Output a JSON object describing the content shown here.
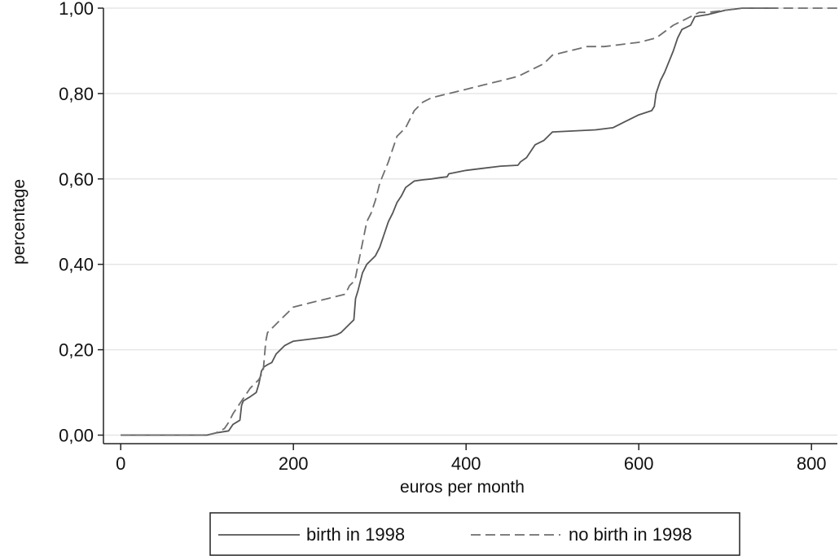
{
  "chart_data": {
    "type": "line",
    "title": "",
    "xlabel": "euros per month",
    "ylabel": "percentage",
    "xlim": [
      -20,
      830
    ],
    "ylim": [
      -0.02,
      1.0
    ],
    "xticks": [
      0,
      200,
      400,
      600,
      800
    ],
    "xtick_labels": [
      "0",
      "200",
      "400",
      "600",
      "800"
    ],
    "yticks": [
      0.0,
      0.2,
      0.4,
      0.6,
      0.8,
      1.0
    ],
    "ytick_labels": [
      "0,00",
      "0,20",
      "0,40",
      "0,60",
      "0,80",
      "1,00"
    ],
    "grid": "horizontal",
    "legend_position": "bottom",
    "series": [
      {
        "name": "birth in 1998",
        "color": "#555555",
        "dash": "solid",
        "x": [
          0,
          100,
          110,
          125,
          130,
          138,
          140,
          142,
          150,
          157,
          160,
          163,
          166,
          170,
          175,
          180,
          185,
          190,
          195,
          200,
          220,
          240,
          250,
          255,
          260,
          265,
          270,
          272,
          275,
          280,
          285,
          290,
          295,
          300,
          305,
          310,
          315,
          320,
          325,
          330,
          340,
          350,
          360,
          370,
          378,
          380,
          400,
          420,
          440,
          460,
          463,
          470,
          480,
          490,
          500,
          550,
          570,
          580,
          600,
          615,
          618,
          620,
          625,
          630,
          640,
          645,
          650,
          660,
          665,
          680,
          700,
          720,
          740,
          760
        ],
        "y": [
          0.0,
          0.0,
          0.005,
          0.01,
          0.025,
          0.035,
          0.07,
          0.08,
          0.09,
          0.1,
          0.12,
          0.15,
          0.16,
          0.165,
          0.17,
          0.19,
          0.2,
          0.21,
          0.215,
          0.22,
          0.225,
          0.23,
          0.235,
          0.24,
          0.25,
          0.26,
          0.27,
          0.32,
          0.34,
          0.38,
          0.4,
          0.41,
          0.42,
          0.44,
          0.47,
          0.5,
          0.52,
          0.545,
          0.56,
          0.58,
          0.595,
          0.598,
          0.6,
          0.603,
          0.605,
          0.612,
          0.62,
          0.625,
          0.63,
          0.632,
          0.64,
          0.65,
          0.68,
          0.69,
          0.71,
          0.715,
          0.72,
          0.73,
          0.75,
          0.76,
          0.77,
          0.8,
          0.83,
          0.85,
          0.9,
          0.93,
          0.95,
          0.96,
          0.98,
          0.985,
          0.995,
          1.0,
          1.0,
          1.0
        ]
      },
      {
        "name": "no birth in 1998",
        "color": "#6e6e6e",
        "dash": "dashed",
        "x": [
          0,
          100,
          110,
          120,
          125,
          130,
          140,
          150,
          160,
          165,
          168,
          170,
          180,
          190,
          200,
          220,
          240,
          260,
          265,
          270,
          272,
          275,
          280,
          285,
          290,
          295,
          300,
          310,
          320,
          330,
          340,
          345,
          350,
          360,
          380,
          400,
          420,
          440,
          460,
          470,
          480,
          490,
          500,
          520,
          540,
          560,
          580,
          600,
          620,
          640,
          650,
          660,
          670,
          680,
          700,
          720,
          760,
          800,
          830
        ],
        "y": [
          0.0,
          0.0,
          0.005,
          0.015,
          0.03,
          0.05,
          0.08,
          0.11,
          0.13,
          0.15,
          0.22,
          0.24,
          0.26,
          0.28,
          0.3,
          0.31,
          0.32,
          0.33,
          0.35,
          0.36,
          0.37,
          0.4,
          0.45,
          0.5,
          0.52,
          0.55,
          0.59,
          0.64,
          0.7,
          0.72,
          0.76,
          0.77,
          0.78,
          0.79,
          0.8,
          0.81,
          0.82,
          0.83,
          0.84,
          0.85,
          0.86,
          0.87,
          0.89,
          0.9,
          0.91,
          0.91,
          0.915,
          0.92,
          0.93,
          0.96,
          0.97,
          0.98,
          0.99,
          0.99,
          0.995,
          1.0,
          1.0,
          1.0,
          1.0
        ]
      }
    ]
  }
}
